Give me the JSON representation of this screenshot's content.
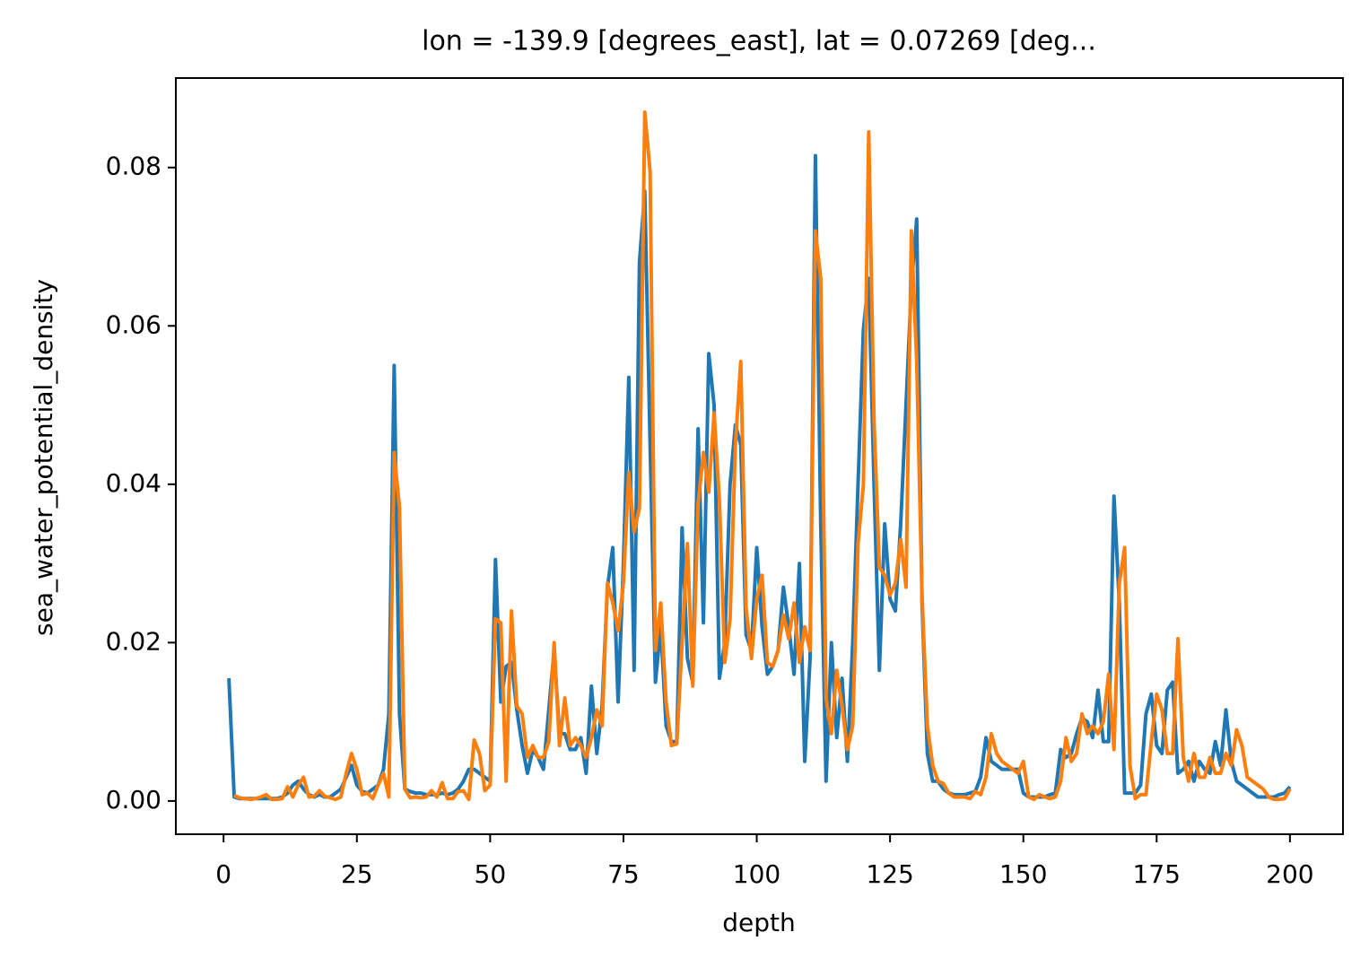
{
  "chart_data": {
    "type": "line",
    "title": "lon = -139.9 [degrees_east], lat = 0.07269 [deg...",
    "xlabel": "depth",
    "ylabel": "sea_water_potential_density",
    "x": [
      1,
      2,
      3,
      4,
      5,
      6,
      7,
      8,
      9,
      10,
      11,
      12,
      13,
      14,
      15,
      16,
      17,
      18,
      19,
      20,
      21,
      22,
      23,
      24,
      25,
      26,
      27,
      28,
      29,
      30,
      31,
      32,
      33,
      34,
      35,
      36,
      37,
      38,
      39,
      40,
      41,
      42,
      43,
      44,
      45,
      46,
      47,
      48,
      49,
      50,
      51,
      52,
      53,
      54,
      55,
      56,
      57,
      58,
      59,
      60,
      61,
      62,
      63,
      64,
      65,
      66,
      67,
      68,
      69,
      70,
      71,
      72,
      73,
      74,
      75,
      76,
      77,
      78,
      79,
      80,
      81,
      82,
      83,
      84,
      85,
      86,
      87,
      88,
      89,
      90,
      91,
      92,
      93,
      94,
      95,
      96,
      97,
      98,
      99,
      100,
      101,
      102,
      103,
      104,
      105,
      106,
      107,
      108,
      109,
      110,
      111,
      112,
      113,
      114,
      115,
      116,
      117,
      118,
      119,
      120,
      121,
      122,
      123,
      124,
      125,
      126,
      127,
      128,
      129,
      130,
      131,
      132,
      133,
      134,
      135,
      136,
      137,
      138,
      139,
      140,
      141,
      142,
      143,
      144,
      145,
      146,
      147,
      148,
      149,
      150,
      151,
      152,
      153,
      154,
      155,
      156,
      157,
      158,
      159,
      160,
      161,
      162,
      163,
      164,
      165,
      166,
      167,
      168,
      169,
      170,
      171,
      172,
      173,
      174,
      175,
      176,
      177,
      178,
      179,
      180,
      181,
      182,
      183,
      184,
      185,
      186,
      187,
      188,
      189,
      190,
      191,
      192,
      193,
      194,
      195,
      196,
      197,
      198,
      199,
      200
    ],
    "series": [
      {
        "color": "#1f77b4",
        "values": [
          0.0155,
          0.0005,
          0.0003,
          0.0003,
          0.0003,
          0.0003,
          0.0003,
          0.0003,
          0.0003,
          0.0003,
          0.0005,
          0.001,
          0.002,
          0.0025,
          0.0015,
          0.0008,
          0.0005,
          0.0008,
          0.0005,
          0.0005,
          0.001,
          0.0015,
          0.003,
          0.0045,
          0.002,
          0.0012,
          0.001,
          0.0015,
          0.002,
          0.004,
          0.011,
          0.055,
          0.011,
          0.0015,
          0.0012,
          0.001,
          0.001,
          0.0008,
          0.0008,
          0.0008,
          0.001,
          0.0008,
          0.001,
          0.0015,
          0.0025,
          0.004,
          0.004,
          0.0035,
          0.003,
          0.0025,
          0.0305,
          0.0125,
          0.017,
          0.0175,
          0.0115,
          0.007,
          0.0035,
          0.0065,
          0.0055,
          0.004,
          0.0115,
          0.019,
          0.0085,
          0.0085,
          0.0065,
          0.0065,
          0.008,
          0.0035,
          0.0145,
          0.006,
          0.012,
          0.027,
          0.032,
          0.0125,
          0.03,
          0.0535,
          0.0165,
          0.068,
          0.077,
          0.045,
          0.015,
          0.022,
          0.0095,
          0.0075,
          0.0075,
          0.0345,
          0.018,
          0.015,
          0.047,
          0.0225,
          0.0565,
          0.05,
          0.0155,
          0.02,
          0.04,
          0.0475,
          0.045,
          0.021,
          0.019,
          0.032,
          0.022,
          0.016,
          0.017,
          0.019,
          0.027,
          0.022,
          0.016,
          0.03,
          0.005,
          0.018,
          0.0815,
          0.035,
          0.0025,
          0.02,
          0.008,
          0.0155,
          0.005,
          0.02,
          0.04,
          0.0595,
          0.066,
          0.04,
          0.0165,
          0.035,
          0.0255,
          0.024,
          0.035,
          0.05,
          0.065,
          0.0735,
          0.025,
          0.006,
          0.0025,
          0.0025,
          0.0015,
          0.001,
          0.0008,
          0.0008,
          0.0008,
          0.001,
          0.0012,
          0.003,
          0.008,
          0.005,
          0.0045,
          0.004,
          0.004,
          0.004,
          0.004,
          0.001,
          0.0005,
          0.0005,
          0.0005,
          0.0005,
          0.0008,
          0.001,
          0.0065,
          0.0055,
          0.006,
          0.0085,
          0.0105,
          0.01,
          0.008,
          0.014,
          0.0075,
          0.0075,
          0.0385,
          0.025,
          0.001,
          0.001,
          0.001,
          0.002,
          0.011,
          0.0135,
          0.007,
          0.006,
          0.014,
          0.015,
          0.0035,
          0.004,
          0.005,
          0.0025,
          0.005,
          0.004,
          0.0035,
          0.0075,
          0.0045,
          0.0115,
          0.005,
          0.0025,
          0.002,
          0.0015,
          0.001,
          0.0005,
          0.0005,
          0.0005,
          0.0005,
          0.0008,
          0.001,
          0.0018
        ]
      },
      {
        "color": "#ff7f0e",
        "values": [
          null,
          0.0007,
          0.0004,
          0.0003,
          0.0002,
          0.0003,
          0.0005,
          0.0008,
          0.0002,
          0.0002,
          0.0003,
          0.0018,
          0.0005,
          0.002,
          0.003,
          0.0005,
          0.0006,
          0.0013,
          0.0006,
          0.0004,
          0.0002,
          0.0005,
          0.0035,
          0.006,
          0.004,
          0.0008,
          0.001,
          0.0003,
          0.002,
          0.0035,
          0.0005,
          0.044,
          0.037,
          0.0015,
          0.0004,
          0.0005,
          0.0004,
          0.0005,
          0.0013,
          0.0005,
          0.0023,
          0.0003,
          0.0003,
          0.0012,
          0.0013,
          0.0002,
          0.0077,
          0.006,
          0.0013,
          0.002,
          0.023,
          0.0225,
          0.0025,
          0.024,
          0.012,
          0.011,
          0.0055,
          0.007,
          0.0055,
          0.0055,
          0.0075,
          0.02,
          0.007,
          0.013,
          0.007,
          0.008,
          0.007,
          0.0055,
          0.008,
          0.0115,
          0.0095,
          0.0275,
          0.025,
          0.0215,
          0.0275,
          0.0415,
          0.034,
          0.037,
          0.087,
          0.0795,
          0.019,
          0.025,
          0.0125,
          0.007,
          0.0072,
          0.02,
          0.0325,
          0.0145,
          0.0375,
          0.044,
          0.039,
          0.049,
          0.038,
          0.0175,
          0.023,
          0.045,
          0.0555,
          0.0245,
          0.018,
          0.0255,
          0.0285,
          0.0175,
          0.017,
          0.019,
          0.0235,
          0.0205,
          0.025,
          0.0175,
          0.022,
          0.019,
          0.072,
          0.066,
          0.013,
          0.0085,
          0.0165,
          0.012,
          0.0065,
          0.0095,
          0.0325,
          0.04,
          0.0845,
          0.048,
          0.0295,
          0.0285,
          0.026,
          0.0275,
          0.033,
          0.027,
          0.072,
          0.0555,
          0.026,
          0.0095,
          0.0045,
          0.0025,
          0.0022,
          0.001,
          0.0005,
          0.0005,
          0.0005,
          0.0003,
          0.0012,
          0.0008,
          0.003,
          0.0085,
          0.006,
          0.005,
          0.0045,
          0.004,
          0.0035,
          0.005,
          0.0005,
          0.0002,
          0.0008,
          0.0005,
          0.0003,
          0.0005,
          0.0025,
          0.008,
          0.005,
          0.006,
          0.011,
          0.0085,
          0.0095,
          0.0085,
          0.01,
          0.016,
          0.0065,
          0.0275,
          0.032,
          0.0045,
          0.0003,
          0.0008,
          0.0008,
          0.0075,
          0.0135,
          0.0115,
          0.006,
          0.006,
          0.0205,
          0.0055,
          0.0025,
          0.006,
          0.003,
          0.003,
          0.0055,
          0.0035,
          0.0035,
          0.006,
          0.0045,
          0.009,
          0.007,
          0.003,
          0.0025,
          0.002,
          0.0015,
          0.0005,
          0.0002,
          0.0002,
          0.0003,
          0.0015
        ]
      }
    ],
    "xlim": [
      -8.95,
      209.95
    ],
    "ylim": [
      -0.0042,
      0.0913
    ],
    "xticks": [
      0,
      25,
      50,
      75,
      100,
      125,
      150,
      175,
      200
    ],
    "yticks": [
      {
        "value": 0,
        "label": "0.00"
      },
      0.02,
      0.04,
      0.06,
      0.08
    ],
    "grid": false
  }
}
